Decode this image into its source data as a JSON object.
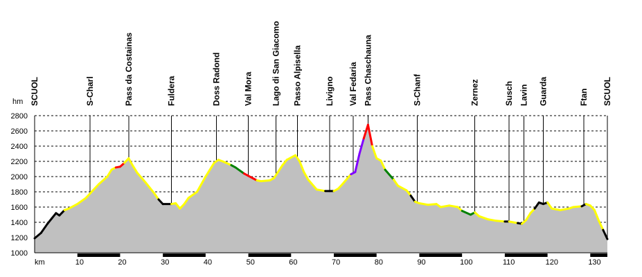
{
  "chart_data": {
    "type": "area",
    "title": "",
    "xlabel": "km",
    "ylabel": "hm",
    "xlim": [
      0,
      134
    ],
    "ylim": [
      1000,
      2800
    ],
    "x_ticks": [
      10,
      20,
      30,
      40,
      50,
      60,
      70,
      80,
      90,
      100,
      110,
      120,
      130
    ],
    "y_ticks": [
      1000,
      1200,
      1400,
      1600,
      1800,
      2000,
      2200,
      2400,
      2600,
      2800
    ],
    "grid": "horizontal-dashed",
    "fill_color": "#c0c0c0",
    "segment_colors": {
      "black": "#000000",
      "yellow": "#ffff00",
      "red": "#ff0000",
      "green": "#008000",
      "purple": "#8000ff"
    },
    "profile": [
      {
        "x": 0,
        "y": 1190,
        "c": "black"
      },
      {
        "x": 1.5,
        "y": 1260,
        "c": "black"
      },
      {
        "x": 3,
        "y": 1380,
        "c": "black"
      },
      {
        "x": 4,
        "y": 1450,
        "c": "black"
      },
      {
        "x": 5,
        "y": 1520,
        "c": "black"
      },
      {
        "x": 5.8,
        "y": 1490,
        "c": "black"
      },
      {
        "x": 7,
        "y": 1560,
        "c": "black"
      },
      {
        "x": 8,
        "y": 1580,
        "c": "yellow"
      },
      {
        "x": 10,
        "y": 1640,
        "c": "yellow"
      },
      {
        "x": 12,
        "y": 1720,
        "c": "yellow"
      },
      {
        "x": 13,
        "y": 1780,
        "c": "yellow"
      },
      {
        "x": 15,
        "y": 1900,
        "c": "yellow"
      },
      {
        "x": 17,
        "y": 2000,
        "c": "yellow"
      },
      {
        "x": 18,
        "y": 2090,
        "c": "yellow"
      },
      {
        "x": 19,
        "y": 2120,
        "c": "yellow"
      },
      {
        "x": 20,
        "y": 2130,
        "c": "red"
      },
      {
        "x": 21,
        "y": 2180,
        "c": "red"
      },
      {
        "x": 22,
        "y": 2240,
        "c": "yellow"
      },
      {
        "x": 23,
        "y": 2140,
        "c": "yellow"
      },
      {
        "x": 24,
        "y": 2050,
        "c": "yellow"
      },
      {
        "x": 26,
        "y": 1920,
        "c": "yellow"
      },
      {
        "x": 28,
        "y": 1780,
        "c": "yellow"
      },
      {
        "x": 29,
        "y": 1700,
        "c": "yellow"
      },
      {
        "x": 30,
        "y": 1640,
        "c": "black"
      },
      {
        "x": 32,
        "y": 1640,
        "c": "black"
      },
      {
        "x": 33,
        "y": 1650,
        "c": "yellow"
      },
      {
        "x": 34,
        "y": 1580,
        "c": "yellow"
      },
      {
        "x": 35,
        "y": 1640,
        "c": "yellow"
      },
      {
        "x": 36,
        "y": 1720,
        "c": "yellow"
      },
      {
        "x": 38,
        "y": 1800,
        "c": "yellow"
      },
      {
        "x": 40,
        "y": 2000,
        "c": "yellow"
      },
      {
        "x": 42,
        "y": 2180,
        "c": "yellow"
      },
      {
        "x": 43,
        "y": 2220,
        "c": "yellow"
      },
      {
        "x": 44,
        "y": 2200,
        "c": "yellow"
      },
      {
        "x": 46,
        "y": 2150,
        "c": "yellow"
      },
      {
        "x": 47,
        "y": 2120,
        "c": "green"
      },
      {
        "x": 49,
        "y": 2040,
        "c": "green"
      },
      {
        "x": 50,
        "y": 2010,
        "c": "red"
      },
      {
        "x": 51,
        "y": 1980,
        "c": "red"
      },
      {
        "x": 52,
        "y": 1950,
        "c": "red"
      },
      {
        "x": 53,
        "y": 1940,
        "c": "yellow"
      },
      {
        "x": 55,
        "y": 1950,
        "c": "yellow"
      },
      {
        "x": 56,
        "y": 1980,
        "c": "yellow"
      },
      {
        "x": 58,
        "y": 2150,
        "c": "yellow"
      },
      {
        "x": 59,
        "y": 2220,
        "c": "yellow"
      },
      {
        "x": 61,
        "y": 2280,
        "c": "yellow"
      },
      {
        "x": 62,
        "y": 2200,
        "c": "yellow"
      },
      {
        "x": 63,
        "y": 2060,
        "c": "yellow"
      },
      {
        "x": 64,
        "y": 1960,
        "c": "yellow"
      },
      {
        "x": 66,
        "y": 1830,
        "c": "yellow"
      },
      {
        "x": 68,
        "y": 1810,
        "c": "yellow"
      },
      {
        "x": 69,
        "y": 1810,
        "c": "black"
      },
      {
        "x": 70,
        "y": 1810,
        "c": "black"
      },
      {
        "x": 71,
        "y": 1840,
        "c": "yellow"
      },
      {
        "x": 72,
        "y": 1900,
        "c": "yellow"
      },
      {
        "x": 74,
        "y": 2030,
        "c": "yellow"
      },
      {
        "x": 75,
        "y": 2060,
        "c": "purple"
      },
      {
        "x": 76,
        "y": 2300,
        "c": "purple"
      },
      {
        "x": 77,
        "y": 2500,
        "c": "purple"
      },
      {
        "x": 78,
        "y": 2680,
        "c": "red"
      },
      {
        "x": 79,
        "y": 2400,
        "c": "red"
      },
      {
        "x": 80,
        "y": 2240,
        "c": "yellow"
      },
      {
        "x": 81,
        "y": 2210,
        "c": "yellow"
      },
      {
        "x": 82,
        "y": 2090,
        "c": "yellow"
      },
      {
        "x": 84,
        "y": 1960,
        "c": "green"
      },
      {
        "x": 85,
        "y": 1880,
        "c": "yellow"
      },
      {
        "x": 87,
        "y": 1820,
        "c": "yellow"
      },
      {
        "x": 88,
        "y": 1750,
        "c": "yellow"
      },
      {
        "x": 89,
        "y": 1670,
        "c": "black"
      },
      {
        "x": 90,
        "y": 1650,
        "c": "yellow"
      },
      {
        "x": 92,
        "y": 1630,
        "c": "yellow"
      },
      {
        "x": 94,
        "y": 1640,
        "c": "yellow"
      },
      {
        "x": 95,
        "y": 1600,
        "c": "yellow"
      },
      {
        "x": 97,
        "y": 1620,
        "c": "yellow"
      },
      {
        "x": 99,
        "y": 1600,
        "c": "yellow"
      },
      {
        "x": 100,
        "y": 1550,
        "c": "yellow"
      },
      {
        "x": 102,
        "y": 1500,
        "c": "green"
      },
      {
        "x": 103,
        "y": 1530,
        "c": "green"
      },
      {
        "x": 104,
        "y": 1480,
        "c": "yellow"
      },
      {
        "x": 106,
        "y": 1440,
        "c": "yellow"
      },
      {
        "x": 108,
        "y": 1420,
        "c": "yellow"
      },
      {
        "x": 110,
        "y": 1410,
        "c": "yellow"
      },
      {
        "x": 111,
        "y": 1410,
        "c": "black"
      },
      {
        "x": 112,
        "y": 1400,
        "c": "yellow"
      },
      {
        "x": 113,
        "y": 1390,
        "c": "yellow"
      },
      {
        "x": 114,
        "y": 1380,
        "c": "black"
      },
      {
        "x": 115,
        "y": 1430,
        "c": "yellow"
      },
      {
        "x": 116,
        "y": 1520,
        "c": "yellow"
      },
      {
        "x": 117,
        "y": 1580,
        "c": "yellow"
      },
      {
        "x": 118,
        "y": 1660,
        "c": "black"
      },
      {
        "x": 119,
        "y": 1640,
        "c": "black"
      },
      {
        "x": 120,
        "y": 1660,
        "c": "black"
      },
      {
        "x": 121,
        "y": 1580,
        "c": "yellow"
      },
      {
        "x": 122,
        "y": 1570,
        "c": "yellow"
      },
      {
        "x": 123,
        "y": 1560,
        "c": "yellow"
      },
      {
        "x": 125,
        "y": 1580,
        "c": "yellow"
      },
      {
        "x": 126,
        "y": 1600,
        "c": "yellow"
      },
      {
        "x": 128,
        "y": 1610,
        "c": "yellow"
      },
      {
        "x": 129,
        "y": 1640,
        "c": "black"
      },
      {
        "x": 130,
        "y": 1620,
        "c": "yellow"
      },
      {
        "x": 131,
        "y": 1560,
        "c": "yellow"
      },
      {
        "x": 132,
        "y": 1420,
        "c": "yellow"
      },
      {
        "x": 133,
        "y": 1300,
        "c": "yellow"
      },
      {
        "x": 134,
        "y": 1180,
        "c": "black"
      }
    ],
    "waypoints": [
      {
        "name": "SCUOL",
        "km": 0,
        "line": false
      },
      {
        "name": "S-Charl",
        "km": 13,
        "line": true
      },
      {
        "name": "Pass da Costainas",
        "km": 22,
        "line": true
      },
      {
        "name": "Fuldera",
        "km": 32,
        "line": true
      },
      {
        "name": "Doss Radond",
        "km": 42.5,
        "line": true
      },
      {
        "name": "Val Mora",
        "km": 50,
        "line": true
      },
      {
        "name": "Lago di San Giacomo",
        "km": 56.5,
        "line": true
      },
      {
        "name": "Passo Alpisella",
        "km": 61.5,
        "line": true
      },
      {
        "name": "Livigno",
        "km": 69,
        "line": true
      },
      {
        "name": "Val Fedaria",
        "km": 74.5,
        "line": true
      },
      {
        "name": "Pass Chaschauna",
        "km": 78,
        "line": true
      },
      {
        "name": "S-Chanf",
        "km": 89.5,
        "line": true
      },
      {
        "name": "Zernez",
        "km": 103,
        "line": true
      },
      {
        "name": "Susch",
        "km": 111,
        "line": true
      },
      {
        "name": "Lavin",
        "km": 114.5,
        "line": true
      },
      {
        "name": "Guarda",
        "km": 119,
        "line": true
      },
      {
        "name": "Ftan",
        "km": 128.5,
        "line": true
      },
      {
        "name": "SCUOL",
        "km": 134,
        "line": true
      }
    ]
  }
}
